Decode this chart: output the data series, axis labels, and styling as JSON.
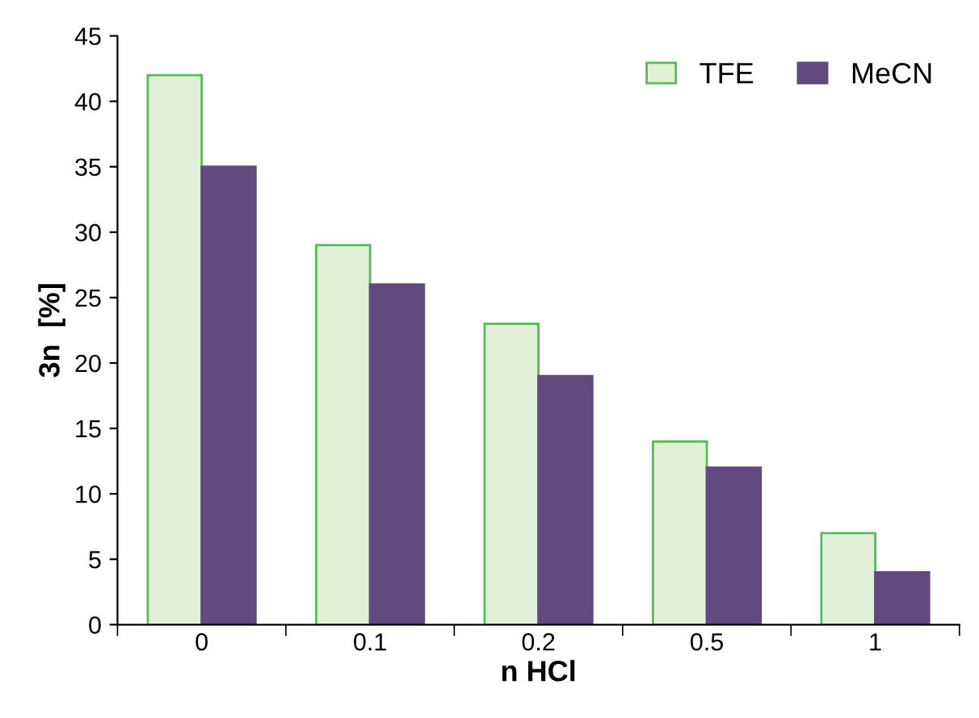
{
  "chart_data": {
    "type": "bar",
    "xlabel": "n HCl",
    "ylabel": "3n  [%]",
    "categories": [
      "0",
      "0.1",
      "0.2",
      "0.5",
      "1"
    ],
    "series": [
      {
        "name": "TFE",
        "color": "#e3f0d8",
        "values": [
          42,
          29,
          23,
          14,
          7
        ]
      },
      {
        "name": "MeCN",
        "color": "#614a7d",
        "values": [
          35,
          26,
          19,
          12,
          4
        ]
      }
    ],
    "ylim": [
      0,
      45
    ],
    "yticks": [
      0,
      5,
      10,
      15,
      20,
      25,
      30,
      35,
      40,
      45
    ],
    "grid": false,
    "legend": "top right"
  }
}
